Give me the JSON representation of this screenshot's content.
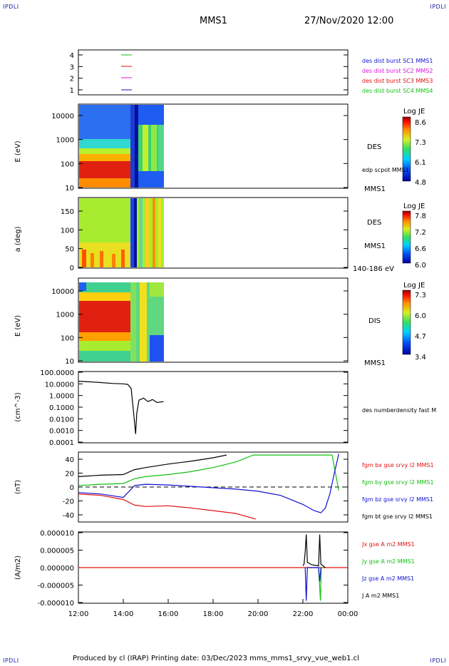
{
  "corners": {
    "tl": "IPDLI",
    "tr": "IPDLI",
    "bl": "IPDLI",
    "br": "IPDLI"
  },
  "header": {
    "spacecraft": "MMS1",
    "datetime": "27/Nov/2020 12:00"
  },
  "footer": {
    "text": "Produced by cl (IRAP)   Printing date: 03/Dec/2023   mms_mms1_srvy_vue_web1.cl"
  },
  "colors": {
    "red": "#e01010",
    "green": "#10c010",
    "blue": "#1010d0",
    "magenta": "#e010e0",
    "black": "#000000"
  },
  "chart_data": [
    {
      "type": "line",
      "panel": "burst-availability",
      "yticks": [
        "4",
        "3",
        "2",
        "1"
      ],
      "legend": [
        {
          "label": "des dist burst SC1 MMS1",
          "color": "#1010d0"
        },
        {
          "label": "des dist burst SC2 MMS2",
          "color": "#e010e0"
        },
        {
          "label": "des dist burst SC3 MMS3",
          "color": "#e01010"
        },
        {
          "label": "des dist burst SC4 MMS4",
          "color": "#10c010"
        }
      ]
    },
    {
      "type": "heatmap",
      "panel": "des-energy",
      "ylabel": "E (eV)",
      "yticks": [
        "10000",
        "1000",
        "100",
        "10"
      ],
      "label": "DES",
      "label2": "edp scpot MMS1",
      "label3": "MMS1",
      "colorbar": {
        "title": "Log JE",
        "ticks": [
          "8.6",
          "7.3",
          "6.1",
          "4.8"
        ]
      }
    },
    {
      "type": "heatmap",
      "panel": "des-pitch-angle",
      "ylabel": "a (deg)",
      "yticks": [
        "150",
        "100",
        "50",
        "0"
      ],
      "label": "DES",
      "label2": "MMS1",
      "label3": "140-186 eV",
      "colorbar": {
        "title": "Log JE",
        "ticks": [
          "7.8",
          "7.2",
          "6.6",
          "6.0"
        ]
      }
    },
    {
      "type": "heatmap",
      "panel": "dis-energy",
      "ylabel": "E (eV)",
      "yticks": [
        "10000",
        "1000",
        "100",
        "10"
      ],
      "label": "DIS",
      "label2": "MMS1",
      "colorbar": {
        "title": "Log JE",
        "ticks": [
          "7.3",
          "6.0",
          "4.7",
          "3.4"
        ]
      }
    },
    {
      "type": "line",
      "panel": "density",
      "ylabel": "(cm^-3)",
      "yscale": "log",
      "ylim": [
        0.0001,
        100
      ],
      "yticks": [
        "100.0000",
        "10.0000",
        "1.0000",
        "0.1000",
        "0.0100",
        "0.0010",
        "0.0001"
      ],
      "series": [
        {
          "name": "des numberdensity fast M",
          "x": [
            12.0,
            12.5,
            13.0,
            13.5,
            14.0,
            14.2,
            14.35,
            14.45,
            14.55,
            14.6,
            14.7,
            14.9,
            15.1,
            15.3,
            15.5,
            15.8
          ],
          "values": [
            17,
            15,
            13,
            11,
            10,
            9,
            4,
            0.05,
            0.0005,
            0.03,
            0.4,
            0.6,
            0.3,
            0.45,
            0.25,
            0.3
          ],
          "color": "#000000"
        }
      ]
    },
    {
      "type": "line",
      "panel": "magnetic-field",
      "ylabel": "(nT)",
      "ylim": [
        -45,
        45
      ],
      "yticks": [
        "40",
        "20",
        "0",
        "-20",
        "-40"
      ],
      "series": [
        {
          "name": "fgm bx gse srvy l2 MMS1",
          "color": "#e01010",
          "x": [
            12.0,
            13.0,
            14.0,
            14.5,
            15.0,
            16.0,
            17.0,
            18.0,
            19.0,
            19.9
          ],
          "values": [
            -10,
            -12,
            -18,
            -26,
            -28,
            -27,
            -30,
            -34,
            -38,
            -46
          ]
        },
        {
          "name": "fgm by gse srvy l2 MMS1",
          "color": "#10c010",
          "x": [
            12.0,
            13.0,
            14.0,
            14.5,
            15.0,
            16.0,
            17.0,
            18.0,
            19.0,
            19.8,
            23.3,
            23.45,
            23.6
          ],
          "values": [
            2,
            4,
            5,
            12,
            15,
            18,
            22,
            28,
            36,
            46,
            46,
            20,
            -5
          ]
        },
        {
          "name": "fgm bz gse srvy l2 MMS1",
          "color": "#1010d0",
          "x": [
            12.0,
            13.0,
            14.0,
            14.5,
            15.0,
            16.0,
            17.0,
            18.0,
            19.0,
            20.0,
            21.0,
            22.0,
            22.5,
            22.8,
            23.0,
            23.2,
            23.4,
            23.6
          ],
          "values": [
            -8,
            -10,
            -15,
            2,
            4,
            3,
            1,
            -1,
            -3,
            -6,
            -12,
            -25,
            -34,
            -37,
            -30,
            -10,
            20,
            48
          ]
        },
        {
          "name": "fgm bt gse srvy l2 MMS1",
          "color": "#000000",
          "x": [
            12.0,
            13.0,
            14.0,
            14.5,
            15.0,
            16.0,
            17.0,
            18.0,
            18.6
          ],
          "values": [
            15,
            17,
            18,
            25,
            28,
            33,
            37,
            42,
            46
          ]
        }
      ]
    },
    {
      "type": "line",
      "panel": "current-density",
      "ylabel": "(A/m2)",
      "ylim": [
        -1e-05,
        1e-05
      ],
      "yticks": [
        "0.000010",
        "0.000005",
        "0.000000",
        "-0.000005",
        "-0.000010"
      ],
      "xticks": [
        "12:00",
        "14:00",
        "16:00",
        "18:00",
        "20:00",
        "22:00",
        "00:00"
      ],
      "series": [
        {
          "name": "Jx gse A m2 MMS1",
          "color": "#e01010",
          "x": [
            12,
            24
          ],
          "values": [
            0,
            0
          ]
        },
        {
          "name": "Jy gse A m2 MMS1",
          "color": "#10c010",
          "x": [
            22.7,
            22.78,
            22.82,
            22.9
          ],
          "values": [
            0,
            -9.5e-06,
            0,
            0
          ]
        },
        {
          "name": "Jz gse A m2 MMS1",
          "color": "#1010d0",
          "x": [
            22.1,
            22.15,
            22.2,
            22.7,
            22.75,
            22.8
          ],
          "values": [
            0,
            -9.5e-06,
            0,
            0,
            -4e-06,
            0
          ]
        },
        {
          "name": "J A m2 MMS1",
          "color": "#000000",
          "x": [
            22.0,
            22.05,
            22.1,
            22.15,
            22.2,
            22.4,
            22.7,
            22.75,
            22.8,
            23.0
          ],
          "values": [
            5e-07,
            1e-06,
            4.5e-06,
            9.5e-06,
            1.5e-06,
            8e-07,
            5e-07,
            9.5e-06,
            1e-06,
            0
          ]
        }
      ]
    }
  ]
}
